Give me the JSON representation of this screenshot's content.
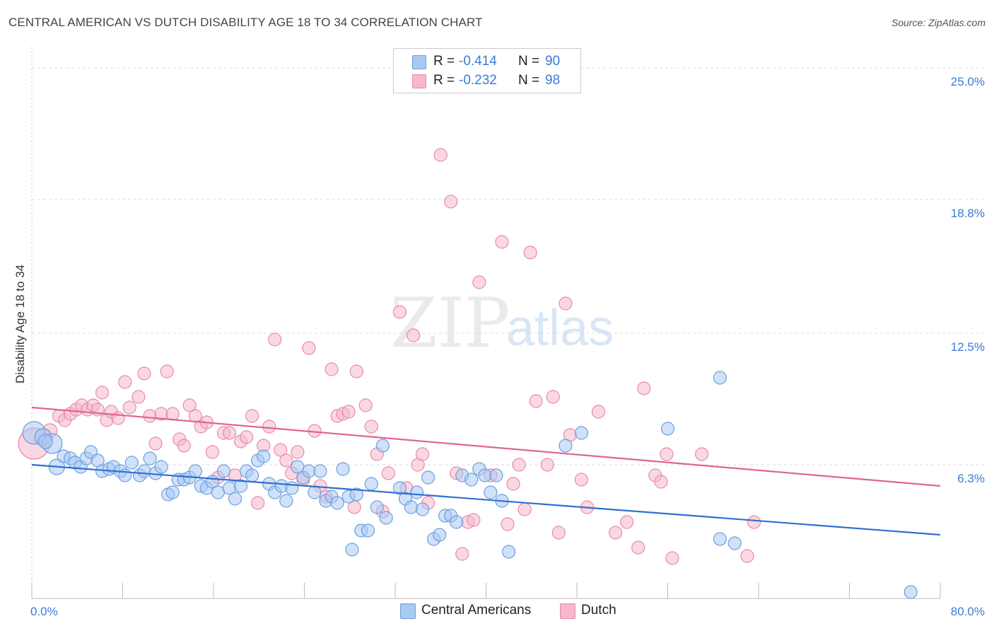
{
  "header": {
    "title": "CENTRAL AMERICAN VS DUTCH DISABILITY AGE 18 TO 34 CORRELATION CHART",
    "source": "Source: ZipAtlas.com"
  },
  "watermark": {
    "zip": "ZIP",
    "atlas": "atlas"
  },
  "legend": {
    "rows": [
      {
        "r_label": "R =",
        "r_value": "-0.414",
        "n_label": "N =",
        "n_value": "90"
      },
      {
        "r_label": "R =",
        "r_value": "-0.232",
        "n_label": "N =",
        "n_value": "98"
      }
    ]
  },
  "bottom_legend": {
    "series1": "Central Americans",
    "series2": "Dutch"
  },
  "colors": {
    "blue_fill": "#a9c9f2",
    "blue_stroke": "#6a9fe0",
    "blue_line": "#2f6fd0",
    "pink_fill": "#f6b8cb",
    "pink_stroke": "#e88aa8",
    "pink_line": "#e0648f",
    "tick_text": "#3a7bd5",
    "grid": "#dddddd"
  },
  "chart_data": {
    "type": "scatter",
    "title": "CENTRAL AMERICAN VS DUTCH DISABILITY AGE 18 TO 34 CORRELATION CHART",
    "xlabel": "",
    "ylabel": "Disability Age 18 to 34",
    "x_tick_labels": [
      "0.0%",
      "80.0%"
    ],
    "y_tick_labels": [
      "25.0%",
      "18.8%",
      "12.5%",
      "6.3%"
    ],
    "y_ticks": [
      25.0,
      18.8,
      12.5,
      6.3
    ],
    "xlim": [
      0,
      80
    ],
    "ylim": [
      0,
      25.6
    ],
    "grid": true,
    "legend_position": "top-center",
    "series": [
      {
        "name": "Central Americans",
        "trendline": {
          "x": [
            0,
            80
          ],
          "y": [
            6.3,
            3.0
          ]
        },
        "points": [
          [
            0.2,
            7.8,
            16
          ],
          [
            1.0,
            7.6,
            12
          ],
          [
            1.8,
            7.3,
            14
          ],
          [
            1.2,
            7.4,
            10
          ],
          [
            2.2,
            6.2,
            11
          ],
          [
            2.8,
            6.7,
            9
          ],
          [
            3.4,
            6.6,
            9
          ],
          [
            3.8,
            6.4,
            9
          ],
          [
            4.3,
            6.2,
            9
          ],
          [
            4.8,
            6.6,
            9
          ],
          [
            5.2,
            6.9,
            9
          ],
          [
            5.8,
            6.5,
            9
          ],
          [
            6.2,
            6.0,
            9
          ],
          [
            6.8,
            6.1,
            9
          ],
          [
            7.2,
            6.2,
            9
          ],
          [
            7.8,
            6.0,
            9
          ],
          [
            8.2,
            5.8,
            9
          ],
          [
            8.8,
            6.4,
            9
          ],
          [
            9.5,
            5.8,
            9
          ],
          [
            9.9,
            6.0,
            9
          ],
          [
            10.4,
            6.6,
            9
          ],
          [
            10.9,
            5.9,
            9
          ],
          [
            11.4,
            6.2,
            9
          ],
          [
            12.0,
            4.9,
            9
          ],
          [
            12.4,
            5.0,
            9
          ],
          [
            12.9,
            5.6,
            9
          ],
          [
            13.4,
            5.6,
            9
          ],
          [
            13.9,
            5.7,
            9
          ],
          [
            14.4,
            6.0,
            9
          ],
          [
            14.9,
            5.3,
            9
          ],
          [
            15.4,
            5.2,
            9
          ],
          [
            15.9,
            5.5,
            9
          ],
          [
            16.4,
            5.0,
            9
          ],
          [
            16.9,
            6.0,
            9
          ],
          [
            17.4,
            5.2,
            9
          ],
          [
            17.9,
            4.7,
            9
          ],
          [
            18.4,
            5.3,
            9
          ],
          [
            18.9,
            6.0,
            9
          ],
          [
            19.4,
            5.8,
            9
          ],
          [
            19.9,
            6.5,
            9
          ],
          [
            20.4,
            6.7,
            9
          ],
          [
            20.9,
            5.4,
            9
          ],
          [
            21.4,
            5.0,
            9
          ],
          [
            22.0,
            5.3,
            9
          ],
          [
            22.4,
            4.6,
            9
          ],
          [
            22.9,
            5.2,
            9
          ],
          [
            23.4,
            6.2,
            9
          ],
          [
            23.9,
            5.7,
            9
          ],
          [
            24.4,
            6.0,
            9
          ],
          [
            24.9,
            5.0,
            9
          ],
          [
            25.4,
            6.0,
            9
          ],
          [
            25.9,
            4.6,
            9
          ],
          [
            26.4,
            4.8,
            9
          ],
          [
            26.9,
            4.5,
            9
          ],
          [
            27.4,
            6.1,
            9
          ],
          [
            27.9,
            4.8,
            9
          ],
          [
            28.2,
            2.3,
            9
          ],
          [
            28.6,
            4.9,
            9
          ],
          [
            29.0,
            3.2,
            9
          ],
          [
            29.6,
            3.2,
            9
          ],
          [
            29.9,
            5.4,
            9
          ],
          [
            30.4,
            4.3,
            9
          ],
          [
            30.9,
            7.2,
            9
          ],
          [
            31.2,
            3.8,
            9
          ],
          [
            32.4,
            5.2,
            9
          ],
          [
            32.9,
            4.7,
            9
          ],
          [
            33.4,
            4.3,
            9
          ],
          [
            33.9,
            5.0,
            9
          ],
          [
            34.4,
            4.2,
            9
          ],
          [
            34.9,
            5.7,
            9
          ],
          [
            35.4,
            2.8,
            9
          ],
          [
            35.9,
            3.0,
            9
          ],
          [
            36.4,
            3.9,
            9
          ],
          [
            36.9,
            3.9,
            9
          ],
          [
            37.4,
            3.6,
            9
          ],
          [
            37.9,
            5.8,
            9
          ],
          [
            38.7,
            5.6,
            9
          ],
          [
            39.4,
            6.1,
            9
          ],
          [
            39.9,
            5.8,
            9
          ],
          [
            40.4,
            5.0,
            9
          ],
          [
            40.9,
            5.8,
            9
          ],
          [
            41.4,
            4.6,
            9
          ],
          [
            42.0,
            2.2,
            9
          ],
          [
            47.0,
            7.2,
            9
          ],
          [
            48.4,
            7.8,
            9
          ],
          [
            56.0,
            8.0,
            9
          ],
          [
            60.6,
            10.4,
            9
          ],
          [
            60.6,
            2.8,
            9
          ],
          [
            61.9,
            2.6,
            9
          ],
          [
            77.4,
            0.3,
            9
          ]
        ]
      },
      {
        "name": "Dutch",
        "trendline": {
          "x": [
            0,
            80
          ],
          "y": [
            9.0,
            5.3
          ]
        },
        "points": [
          [
            0.2,
            7.3,
            22
          ],
          [
            1.0,
            7.6,
            12
          ],
          [
            1.6,
            7.9,
            10
          ],
          [
            2.4,
            8.6,
            9
          ],
          [
            2.9,
            8.4,
            9
          ],
          [
            3.4,
            8.7,
            9
          ],
          [
            3.9,
            8.9,
            9
          ],
          [
            4.4,
            9.1,
            9
          ],
          [
            4.9,
            8.9,
            9
          ],
          [
            5.4,
            9.1,
            9
          ],
          [
            5.8,
            8.9,
            9
          ],
          [
            6.2,
            9.7,
            9
          ],
          [
            6.6,
            8.4,
            9
          ],
          [
            7.0,
            8.8,
            9
          ],
          [
            7.6,
            8.5,
            9
          ],
          [
            8.2,
            10.2,
            9
          ],
          [
            8.6,
            9.0,
            9
          ],
          [
            9.4,
            9.5,
            9
          ],
          [
            9.9,
            10.6,
            9
          ],
          [
            10.4,
            8.6,
            9
          ],
          [
            10.9,
            7.3,
            9
          ],
          [
            11.4,
            8.7,
            9
          ],
          [
            11.9,
            10.7,
            9
          ],
          [
            12.4,
            8.7,
            9
          ],
          [
            13.0,
            7.5,
            9
          ],
          [
            13.4,
            7.2,
            9
          ],
          [
            13.9,
            9.1,
            9
          ],
          [
            14.4,
            8.6,
            9
          ],
          [
            14.9,
            8.1,
            9
          ],
          [
            15.4,
            8.3,
            9
          ],
          [
            15.9,
            6.9,
            9
          ],
          [
            16.4,
            5.7,
            9
          ],
          [
            16.9,
            7.8,
            9
          ],
          [
            17.4,
            7.8,
            9
          ],
          [
            17.9,
            5.8,
            9
          ],
          [
            18.4,
            7.4,
            9
          ],
          [
            18.9,
            7.6,
            9
          ],
          [
            19.4,
            8.6,
            9
          ],
          [
            19.9,
            4.5,
            9
          ],
          [
            20.4,
            7.2,
            9
          ],
          [
            20.9,
            8.1,
            9
          ],
          [
            21.4,
            12.2,
            9
          ],
          [
            21.9,
            7.0,
            9
          ],
          [
            22.4,
            6.5,
            9
          ],
          [
            22.9,
            5.9,
            9
          ],
          [
            23.4,
            6.9,
            9
          ],
          [
            23.9,
            5.6,
            9
          ],
          [
            24.4,
            11.8,
            9
          ],
          [
            24.9,
            7.9,
            9
          ],
          [
            25.4,
            5.3,
            9
          ],
          [
            25.9,
            4.8,
            9
          ],
          [
            26.4,
            10.8,
            9
          ],
          [
            26.9,
            8.6,
            9
          ],
          [
            27.4,
            8.7,
            9
          ],
          [
            27.9,
            8.8,
            9
          ],
          [
            28.4,
            4.3,
            9
          ],
          [
            28.6,
            10.7,
            9
          ],
          [
            29.4,
            9.1,
            9
          ],
          [
            29.9,
            8.1,
            9
          ],
          [
            30.4,
            6.8,
            9
          ],
          [
            30.9,
            4.1,
            9
          ],
          [
            31.4,
            5.9,
            9
          ],
          [
            32.4,
            13.5,
            9
          ],
          [
            33.0,
            5.2,
            9
          ],
          [
            33.6,
            12.4,
            9
          ],
          [
            34.0,
            6.3,
            9
          ],
          [
            34.4,
            6.8,
            9
          ],
          [
            34.9,
            4.5,
            9
          ],
          [
            36.0,
            20.9,
            9
          ],
          [
            36.9,
            18.7,
            9
          ],
          [
            37.4,
            5.9,
            9
          ],
          [
            37.9,
            2.1,
            9
          ],
          [
            38.4,
            3.6,
            9
          ],
          [
            38.9,
            3.7,
            9
          ],
          [
            39.4,
            14.9,
            9
          ],
          [
            40.4,
            5.8,
            9
          ],
          [
            41.4,
            16.8,
            9
          ],
          [
            41.9,
            3.5,
            9
          ],
          [
            42.4,
            5.4,
            9
          ],
          [
            42.9,
            6.3,
            9
          ],
          [
            43.4,
            4.2,
            9
          ],
          [
            43.9,
            16.3,
            9
          ],
          [
            44.4,
            9.3,
            9
          ],
          [
            45.4,
            6.3,
            9
          ],
          [
            45.9,
            9.5,
            9
          ],
          [
            46.4,
            3.1,
            9
          ],
          [
            47.0,
            13.9,
            9
          ],
          [
            47.4,
            7.7,
            9
          ],
          [
            48.4,
            5.6,
            9
          ],
          [
            48.9,
            4.3,
            9
          ],
          [
            49.9,
            8.8,
            9
          ],
          [
            51.4,
            3.1,
            9
          ],
          [
            52.4,
            3.6,
            9
          ],
          [
            53.4,
            2.4,
            9
          ],
          [
            53.9,
            9.9,
            9
          ],
          [
            54.9,
            5.8,
            9
          ],
          [
            55.4,
            5.5,
            9
          ],
          [
            55.9,
            6.8,
            9
          ],
          [
            56.4,
            1.9,
            9
          ],
          [
            59.0,
            6.8,
            9
          ],
          [
            63.0,
            2.0,
            9
          ],
          [
            63.6,
            3.6,
            9
          ]
        ]
      }
    ]
  }
}
